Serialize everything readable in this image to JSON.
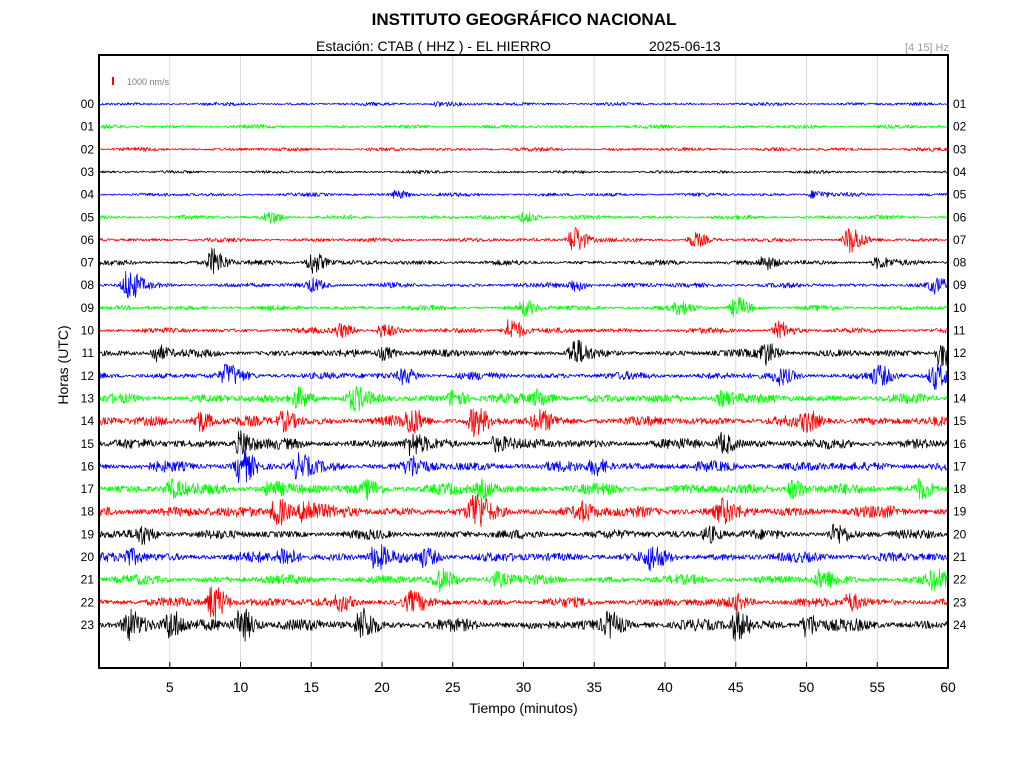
{
  "header": {
    "title": "INSTITUTO GEOGRÁFICO NACIONAL",
    "station": "Estación:  CTAB ( HHZ ) - EL HIERRO",
    "date": "2025-06-13",
    "band": "[4 15] Hz"
  },
  "chart_data": {
    "type": "line",
    "xlabel": "Tiempo (minutos)",
    "ylabel": "Horas (UTC)",
    "xlim": [
      0,
      60
    ],
    "x_ticks": [
      5,
      10,
      15,
      20,
      25,
      30,
      35,
      40,
      45,
      50,
      55,
      60
    ],
    "left_labels": [
      "00",
      "01",
      "02",
      "03",
      "04",
      "05",
      "06",
      "07",
      "08",
      "09",
      "10",
      "11",
      "12",
      "13",
      "14",
      "15",
      "16",
      "17",
      "18",
      "19",
      "20",
      "21",
      "22",
      "23"
    ],
    "right_labels": [
      "01",
      "02",
      "03",
      "04",
      "05",
      "06",
      "07",
      "08",
      "09",
      "10",
      "11",
      "12",
      "13",
      "14",
      "15",
      "16",
      "17",
      "18",
      "19",
      "20",
      "21",
      "22",
      "23",
      "24"
    ],
    "scale_label": "1000 nm/s",
    "colors": [
      "#0000ff",
      "#00ff00",
      "#ff0000",
      "#000000"
    ],
    "grid": true,
    "series": [
      {
        "hour": "00",
        "color": "#0000ff",
        "noise": 2.0,
        "events": [
          [
            24,
            2.5
          ]
        ]
      },
      {
        "hour": "01",
        "color": "#00ff00",
        "noise": 2.2,
        "events": []
      },
      {
        "hour": "02",
        "color": "#ff0000",
        "noise": 2.2,
        "events": []
      },
      {
        "hour": "03",
        "color": "#000000",
        "noise": 1.8,
        "events": []
      },
      {
        "hour": "04",
        "color": "#0000ff",
        "noise": 2.2,
        "events": [
          [
            21,
            4
          ],
          [
            50.5,
            4
          ]
        ]
      },
      {
        "hour": "05",
        "color": "#00ff00",
        "noise": 2.5,
        "events": [
          [
            12,
            6
          ],
          [
            30,
            5
          ]
        ]
      },
      {
        "hour": "06",
        "color": "#ff0000",
        "noise": 2.5,
        "events": [
          [
            33.5,
            14
          ],
          [
            42,
            7
          ],
          [
            53,
            13
          ]
        ]
      },
      {
        "hour": "07",
        "color": "#000000",
        "noise": 3.0,
        "events": [
          [
            8,
            13
          ],
          [
            15,
            11
          ],
          [
            47,
            6
          ],
          [
            55,
            5
          ]
        ]
      },
      {
        "hour": "08",
        "color": "#0000ff",
        "noise": 3.0,
        "events": [
          [
            2,
            15
          ],
          [
            15,
            6
          ],
          [
            33.5,
            6
          ],
          [
            59,
            6
          ]
        ]
      },
      {
        "hour": "09",
        "color": "#00ff00",
        "noise": 3.0,
        "events": [
          [
            30,
            7
          ],
          [
            45,
            10
          ],
          [
            41,
            6
          ]
        ]
      },
      {
        "hour": "10",
        "color": "#ff0000",
        "noise": 3.2,
        "events": [
          [
            17,
            7
          ],
          [
            20,
            6
          ],
          [
            29,
            12
          ],
          [
            48,
            8
          ]
        ]
      },
      {
        "hour": "11",
        "color": "#000000",
        "noise": 4.5,
        "events": [
          [
            4,
            8
          ],
          [
            20,
            6
          ],
          [
            33.5,
            12
          ],
          [
            47,
            11
          ],
          [
            59.5,
            13
          ]
        ]
      },
      {
        "hour": "12",
        "color": "#0000ff",
        "noise": 4.5,
        "events": [
          [
            9,
            9
          ],
          [
            21.5,
            7
          ],
          [
            48,
            7
          ],
          [
            55,
            8
          ],
          [
            59,
            12
          ]
        ]
      },
      {
        "hour": "13",
        "color": "#00ff00",
        "noise": 5.5,
        "events": [
          [
            14,
            10
          ],
          [
            18,
            9
          ],
          [
            25,
            8
          ],
          [
            31,
            8
          ],
          [
            44,
            7
          ]
        ]
      },
      {
        "hour": "14",
        "color": "#ff0000",
        "noise": 6.0,
        "events": [
          [
            7,
            10
          ],
          [
            13,
            9
          ],
          [
            22,
            11
          ],
          [
            26.5,
            13
          ],
          [
            31,
            8
          ],
          [
            50,
            8
          ]
        ]
      },
      {
        "hour": "15",
        "color": "#000000",
        "noise": 6.0,
        "events": [
          [
            10,
            12
          ],
          [
            22,
            9
          ],
          [
            44,
            10
          ],
          [
            28,
            7
          ]
        ]
      },
      {
        "hour": "16",
        "color": "#0000ff",
        "noise": 6.0,
        "events": [
          [
            10,
            16
          ],
          [
            14,
            10
          ],
          [
            22,
            8
          ],
          [
            35,
            8
          ]
        ]
      },
      {
        "hour": "17",
        "color": "#00ff00",
        "noise": 6.5,
        "events": [
          [
            5,
            8
          ],
          [
            12,
            7
          ],
          [
            19,
            7
          ],
          [
            27,
            8
          ],
          [
            49,
            9
          ],
          [
            58,
            8
          ]
        ]
      },
      {
        "hour": "18",
        "color": "#ff0000",
        "noise": 7.0,
        "events": [
          [
            12.5,
            13
          ],
          [
            14.5,
            12
          ],
          [
            26.5,
            16
          ],
          [
            34,
            8
          ],
          [
            44,
            8
          ]
        ]
      },
      {
        "hour": "19",
        "color": "#000000",
        "noise": 5.5,
        "events": [
          [
            3,
            8
          ],
          [
            43,
            8
          ],
          [
            52,
            9
          ]
        ]
      },
      {
        "hour": "20",
        "color": "#0000ff",
        "noise": 6.0,
        "events": [
          [
            2,
            7
          ],
          [
            13,
            10
          ],
          [
            19.5,
            11
          ],
          [
            23,
            8
          ],
          [
            39,
            9
          ]
        ]
      },
      {
        "hour": "21",
        "color": "#00ff00",
        "noise": 5.5,
        "events": [
          [
            24,
            9
          ],
          [
            28,
            7
          ],
          [
            51,
            8
          ],
          [
            59,
            8
          ]
        ]
      },
      {
        "hour": "22",
        "color": "#ff0000",
        "noise": 5.5,
        "events": [
          [
            8,
            18
          ],
          [
            17,
            7
          ],
          [
            22,
            7
          ],
          [
            45,
            6
          ],
          [
            53,
            8
          ]
        ]
      },
      {
        "hour": "23",
        "color": "#000000",
        "noise": 7.0,
        "events": [
          [
            2,
            14
          ],
          [
            5,
            13
          ],
          [
            10,
            16
          ],
          [
            18.5,
            15
          ],
          [
            36,
            9
          ],
          [
            45,
            13
          ],
          [
            50,
            11
          ]
        ]
      }
    ]
  }
}
